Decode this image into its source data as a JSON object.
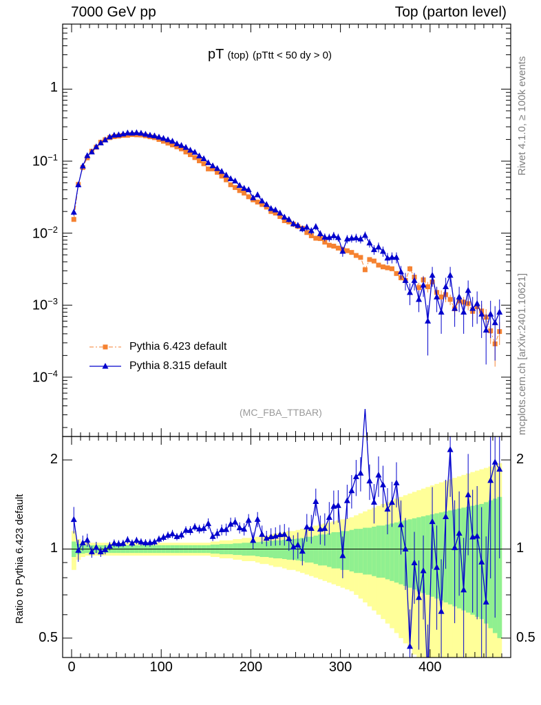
{
  "header": {
    "left": "7000 GeV pp",
    "right": "Top (parton level)"
  },
  "side_labels": {
    "rivet": "Rivet 4.1.0, ≥ 100k events",
    "source": "mcplots.cern.ch [arXiv:2401.10621]"
  },
  "colors": {
    "pythia6": "#f58231",
    "pythia8": "#0000cc",
    "band_inner": "#90f090",
    "band_outer": "#ffff99"
  },
  "chart_data": [
    {
      "type": "line",
      "panel": "main",
      "title": "pT",
      "title_sub": "(top)",
      "title_cond": "(pTtt < 50 dy > 0)",
      "analysis_tag": "(MC_FBA_TTBAR)",
      "yscale": "log",
      "xlim": [
        -10,
        490
      ],
      "ylim": [
        1.5e-05,
        8
      ],
      "ytick_labels": [
        "1",
        "10^-1",
        "10^-2",
        "10^-3",
        "10^-4"
      ],
      "ytick_values": [
        1,
        0.1,
        0.01,
        0.001,
        0.0001
      ],
      "legend_position": "lower-left",
      "x": [
        2.5,
        7.5,
        12.5,
        17.5,
        22.5,
        27.5,
        32.5,
        37.5,
        42.5,
        47.5,
        52.5,
        57.5,
        62.5,
        67.5,
        72.5,
        77.5,
        82.5,
        87.5,
        92.5,
        97.5,
        102.5,
        107.5,
        112.5,
        117.5,
        122.5,
        127.5,
        132.5,
        137.5,
        142.5,
        147.5,
        152.5,
        157.5,
        162.5,
        167.5,
        172.5,
        177.5,
        182.5,
        187.5,
        192.5,
        197.5,
        202.5,
        207.5,
        212.5,
        217.5,
        222.5,
        227.5,
        232.5,
        237.5,
        242.5,
        247.5,
        252.5,
        257.5,
        262.5,
        267.5,
        272.5,
        277.5,
        282.5,
        287.5,
        292.5,
        297.5,
        302.5,
        307.5,
        312.5,
        317.5,
        322.5,
        327.5,
        332.5,
        337.5,
        342.5,
        347.5,
        352.5,
        357.5,
        362.5,
        367.5,
        372.5,
        377.5,
        382.5,
        387.5,
        392.5,
        397.5,
        402.5,
        407.5,
        412.5,
        417.5,
        422.5,
        427.5,
        432.5,
        437.5,
        442.5,
        447.5,
        452.5,
        457.5,
        462.5,
        467.5,
        472.5,
        477.5
      ],
      "series": [
        {
          "name": "Pythia 6.423 default",
          "marker": "square",
          "linestyle": "dash-dot",
          "values": [
            0.0155,
            0.0475,
            0.0815,
            0.111,
            0.137,
            0.156,
            0.183,
            0.198,
            0.212,
            0.219,
            0.223,
            0.228,
            0.229,
            0.234,
            0.232,
            0.231,
            0.225,
            0.218,
            0.212,
            0.2,
            0.189,
            0.178,
            0.168,
            0.158,
            0.148,
            0.134,
            0.123,
            0.112,
            0.101,
            0.092,
            0.078,
            0.078,
            0.07,
            0.062,
            0.055,
            0.047,
            0.043,
            0.039,
            0.036,
            0.032,
            0.029,
            0.027,
            0.025,
            0.023,
            0.02,
            0.019,
            0.017,
            0.0149,
            0.0143,
            0.0133,
            0.0124,
            0.0117,
            0.0102,
            0.0092,
            0.0085,
            0.0084,
            0.0075,
            0.0068,
            0.0066,
            0.0062,
            0.0059,
            0.0057,
            0.0054,
            0.0049,
            0.0046,
            0.0031,
            0.0043,
            0.0041,
            0.0036,
            0.0034,
            0.0033,
            0.0032,
            0.00275,
            0.0024,
            0.0022,
            0.0032,
            0.00245,
            0.00175,
            0.00225,
            0.0018,
            0.0021,
            0.0015,
            0.0013,
            0.0014,
            0.0012,
            0.00089,
            0.00115,
            0.0011,
            0.00105,
            0.00082,
            0.00095,
            0.00083,
            0.00068,
            0.00044,
            0.00029,
            0.00043
          ],
          "errors": [
            0.0004,
            0.0008,
            0.001,
            0.0012,
            0.0014,
            0.0015,
            0.0017,
            0.0018,
            0.0018,
            0.0019,
            0.0019,
            0.0019,
            0.0019,
            0.0019,
            0.0019,
            0.0019,
            0.0018,
            0.0018,
            0.0017,
            0.0017,
            0.0016,
            0.0016,
            0.0015,
            0.0015,
            0.0014,
            0.0013,
            0.0013,
            0.0012,
            0.0011,
            0.0011,
            0.001,
            0.001,
            0.0009,
            0.0009,
            0.0008,
            0.0007,
            0.0007,
            0.0007,
            0.0006,
            0.0006,
            0.0006,
            0.0005,
            0.0005,
            0.0005,
            0.0004,
            0.0004,
            0.0004,
            0.0004,
            0.0004,
            0.0004,
            0.0004,
            0.0004,
            0.0003,
            0.0003,
            0.0003,
            0.0003,
            0.0003,
            0.0003,
            0.0003,
            0.0003,
            0.0003,
            0.0003,
            0.0003,
            0.0002,
            0.0002,
            0.0002,
            0.0002,
            0.0002,
            0.0002,
            0.0002,
            0.0002,
            0.0002,
            0.0002,
            0.0002,
            0.0002,
            0.0003,
            0.0003,
            0.0003,
            0.0003,
            0.0003,
            0.0003,
            0.0003,
            0.0003,
            0.0003,
            0.0002,
            0.0002,
            0.0002,
            0.0002,
            0.0002,
            0.0002,
            0.0002,
            0.0002,
            0.0002,
            0.00015,
            0.00015,
            0.00015
          ]
        },
        {
          "name": "Pythia 8.315 default",
          "marker": "triangle",
          "linestyle": "solid",
          "values": [
            0.0195,
            0.047,
            0.0855,
            0.119,
            0.134,
            0.158,
            0.179,
            0.197,
            0.217,
            0.229,
            0.232,
            0.238,
            0.246,
            0.245,
            0.248,
            0.244,
            0.236,
            0.229,
            0.224,
            0.216,
            0.207,
            0.198,
            0.189,
            0.174,
            0.165,
            0.155,
            0.142,
            0.133,
            0.118,
            0.108,
            0.095,
            0.086,
            0.079,
            0.072,
            0.064,
            0.057,
            0.053,
            0.046,
            0.042,
            0.04,
            0.031,
            0.034,
            0.028,
            0.025,
            0.022,
            0.021,
            0.019,
            0.0167,
            0.0155,
            0.0135,
            0.0128,
            0.0115,
            0.0121,
            0.0108,
            0.0123,
            0.0098,
            0.0088,
            0.0087,
            0.0092,
            0.0087,
            0.0056,
            0.0083,
            0.0085,
            0.0086,
            0.0083,
            0.0093,
            0.0073,
            0.0059,
            0.0064,
            0.0056,
            0.0045,
            0.0046,
            0.0046,
            0.0029,
            0.0022,
            0.0015,
            0.0022,
            0.0012,
            0.0019,
            0.0006,
            0.0026,
            0.0013,
            0.0008,
            0.0018,
            0.0026,
            0.0009,
            0.0013,
            0.0008,
            0.0016,
            0.0009,
            0.00105,
            0.00075,
            0.00045,
            0.00075,
            0.00057,
            0.0008
          ],
          "errors": [
            0.002,
            0.004,
            0.005,
            0.006,
            0.006,
            0.007,
            0.007,
            0.007,
            0.007,
            0.007,
            0.007,
            0.007,
            0.007,
            0.007,
            0.007,
            0.007,
            0.007,
            0.007,
            0.006,
            0.006,
            0.006,
            0.006,
            0.006,
            0.005,
            0.005,
            0.005,
            0.005,
            0.004,
            0.004,
            0.004,
            0.004,
            0.003,
            0.003,
            0.003,
            0.003,
            0.003,
            0.002,
            0.002,
            0.002,
            0.002,
            0.002,
            0.002,
            0.002,
            0.0015,
            0.0015,
            0.0015,
            0.0015,
            0.0014,
            0.0014,
            0.0013,
            0.0013,
            0.0012,
            0.0013,
            0.0012,
            0.0013,
            0.0011,
            0.0011,
            0.0011,
            0.0012,
            0.0011,
            0.0009,
            0.0011,
            0.0011,
            0.0012,
            0.0011,
            0.0012,
            0.001,
            0.0009,
            0.001,
            0.0009,
            0.0008,
            0.0008,
            0.0008,
            0.0006,
            0.0006,
            0.0005,
            0.0006,
            0.0004,
            0.0006,
            0.0004,
            0.0008,
            0.0005,
            0.0004,
            0.0006,
            0.0008,
            0.0004,
            0.0005,
            0.0004,
            0.0006,
            0.0004,
            0.0005,
            0.0004,
            0.0003,
            0.0004,
            0.0004,
            0.0004
          ]
        }
      ]
    },
    {
      "type": "line",
      "panel": "ratio",
      "ylabel": "Ratio to Pythia 6.423 default",
      "yscale": "log",
      "ylim": [
        0.43,
        2.4
      ],
      "ytick_labels": [
        "2",
        "1",
        "0.5"
      ],
      "ytick_values": [
        2,
        1,
        0.5
      ],
      "xtick_labels": [
        "0",
        "100",
        "200",
        "300",
        "400"
      ],
      "xtick_values": [
        0,
        100,
        200,
        300,
        400
      ],
      "reference_line": 1,
      "band_inner_halfwidth": [
        0.06,
        0.04,
        0.035,
        0.03,
        0.03,
        0.03,
        0.03,
        0.03,
        0.03,
        0.03,
        0.03,
        0.03,
        0.03,
        0.03,
        0.03,
        0.03,
        0.03,
        0.03,
        0.03,
        0.03,
        0.03,
        0.03,
        0.03,
        0.03,
        0.03,
        0.03,
        0.03,
        0.03,
        0.03,
        0.03,
        0.03,
        0.035,
        0.035,
        0.04,
        0.04,
        0.04,
        0.045,
        0.045,
        0.05,
        0.05,
        0.05,
        0.055,
        0.06,
        0.06,
        0.065,
        0.07,
        0.07,
        0.075,
        0.08,
        0.08,
        0.085,
        0.09,
        0.1,
        0.1,
        0.11,
        0.12,
        0.12,
        0.13,
        0.14,
        0.14,
        0.15,
        0.15,
        0.16,
        0.17,
        0.17,
        0.18,
        0.18,
        0.19,
        0.2,
        0.2,
        0.21,
        0.22,
        0.23,
        0.24,
        0.25,
        0.26,
        0.27,
        0.28,
        0.29,
        0.3,
        0.31,
        0.32,
        0.33,
        0.34,
        0.35,
        0.36,
        0.37,
        0.38,
        0.39,
        0.4,
        0.41,
        0.42,
        0.44,
        0.46,
        0.48,
        0.5
      ],
      "band_outer_halfwidth": [
        0.15,
        0.08,
        0.06,
        0.05,
        0.05,
        0.05,
        0.05,
        0.05,
        0.05,
        0.05,
        0.05,
        0.05,
        0.05,
        0.05,
        0.05,
        0.05,
        0.05,
        0.05,
        0.05,
        0.05,
        0.05,
        0.05,
        0.05,
        0.05,
        0.05,
        0.05,
        0.05,
        0.05,
        0.05,
        0.05,
        0.05,
        0.06,
        0.06,
        0.07,
        0.07,
        0.07,
        0.08,
        0.08,
        0.09,
        0.09,
        0.09,
        0.1,
        0.11,
        0.11,
        0.12,
        0.13,
        0.13,
        0.14,
        0.15,
        0.15,
        0.16,
        0.17,
        0.18,
        0.19,
        0.2,
        0.21,
        0.22,
        0.23,
        0.24,
        0.25,
        0.26,
        0.27,
        0.28,
        0.3,
        0.32,
        0.34,
        0.36,
        0.38,
        0.4,
        0.42,
        0.44,
        0.46,
        0.48,
        0.5,
        0.52,
        0.54,
        0.56,
        0.58,
        0.6,
        0.62,
        0.64,
        0.66,
        0.68,
        0.7,
        0.72,
        0.74,
        0.76,
        0.78,
        0.8,
        0.82,
        0.84,
        0.86,
        0.88,
        0.9,
        0.92,
        0.95
      ]
    }
  ]
}
